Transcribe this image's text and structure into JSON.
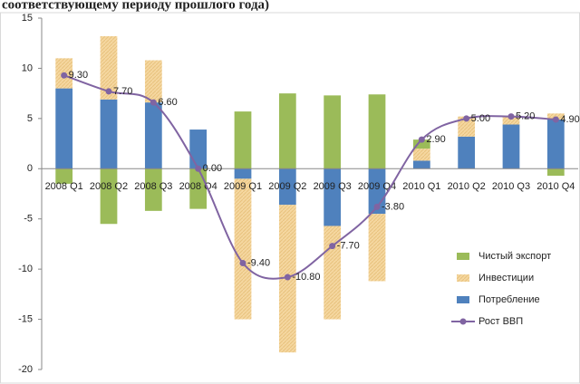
{
  "chart_data": {
    "type": "bar",
    "title": "соответствующему периоду прошлого года)",
    "categories": [
      "2008 Q1",
      "2008 Q2",
      "2008 Q3",
      "2008 Q4",
      "2009 Q1",
      "2009 Q2",
      "2009 Q3",
      "2009 Q4",
      "2010 Q1",
      "2010 Q2",
      "2010 Q3",
      "2010 Q4"
    ],
    "series": [
      {
        "name": "Чистый экспорт",
        "color": "#9bbb59",
        "values": [
          -1.5,
          -5.5,
          -4.2,
          -4.0,
          5.7,
          7.5,
          7.3,
          7.4,
          0.9,
          0,
          0,
          -0.7
        ]
      },
      {
        "name": "Инвестиции",
        "color": "#f5d7a0",
        "values": [
          3.0,
          6.3,
          4.2,
          0,
          -14.0,
          -14.7,
          -9.3,
          -6.7,
          1.2,
          2.0,
          0.8,
          0.6
        ]
      },
      {
        "name": "Потребление",
        "color": "#4f81bd",
        "values": [
          8.0,
          6.9,
          6.6,
          3.9,
          -1.0,
          -3.6,
          -5.7,
          -4.5,
          0.8,
          3.2,
          4.4,
          4.9
        ]
      },
      {
        "name": "Рост ВВП",
        "type": "line",
        "color": "#8064a2",
        "values": [
          9.3,
          7.7,
          6.6,
          0.0,
          -9.4,
          -10.8,
          -7.7,
          -3.8,
          2.9,
          5.0,
          5.2,
          4.9
        ],
        "value_labels": [
          "9.30",
          "7.70",
          "6.60",
          "0.00",
          "-9.40",
          "-10.80",
          "-7.70",
          "-3.80",
          "2.90",
          "5.00",
          "5.20",
          "4.90"
        ]
      }
    ],
    "ylim": [
      -20,
      15
    ],
    "yticks": [
      -20,
      -15,
      -10,
      -5,
      0,
      5,
      10,
      15
    ],
    "legend": "right"
  }
}
